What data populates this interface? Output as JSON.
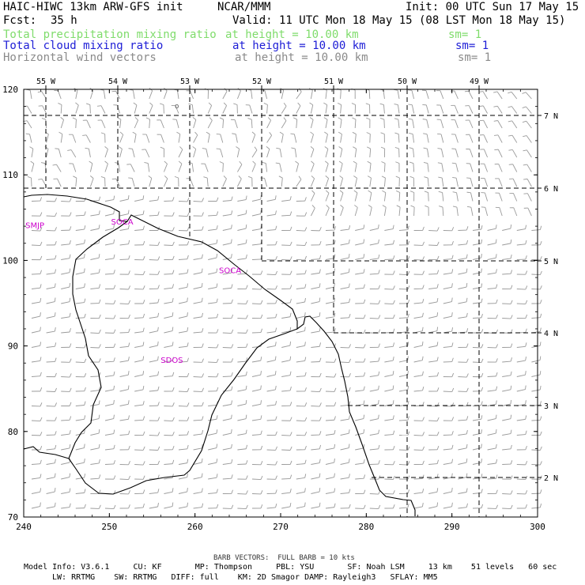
{
  "header": {
    "model_title": "HAIC-HIWC 13km ARW-GFS init",
    "org": "NCAR/MMM",
    "init": "Init: 00 UTC Sun 17 May 15",
    "fcst_label": "Fcst:",
    "fcst_value": "35 h",
    "valid": "Valid: 11 UTC Mon 18 May 15 (08 LST Mon 18 May 15)"
  },
  "fields": [
    {
      "name": "Total precipitation mixing ratio",
      "height": "at height = 10.00 km",
      "sm": "sm= 1",
      "color": "#7fdc6b"
    },
    {
      "name": "Total cloud mixing ratio",
      "height": "at height = 10.00 km",
      "sm": "sm= 1",
      "color": "#1d1dd6"
    },
    {
      "name": "Horizontal wind vectors",
      "height": "at height = 10.00 km",
      "sm": "sm= 1",
      "color": "#8a8a8a"
    }
  ],
  "map": {
    "x_range": [
      240,
      300
    ],
    "y_range": [
      70,
      120
    ],
    "x_ticks": [
      "240",
      "250",
      "260",
      "270",
      "280",
      "290",
      "300"
    ],
    "y_ticks": [
      "70",
      "80",
      "90",
      "100",
      "110",
      "120"
    ],
    "lon_labels": [
      "55 W",
      "54 W",
      "53 W",
      "52 W",
      "51 W",
      "50 W",
      "49 W"
    ],
    "lat_labels": [
      "2 N",
      "3 N",
      "4 N",
      "5 N",
      "6 N",
      "7 N"
    ],
    "stations": [
      {
        "id": "SMJP",
        "x": 241.3,
        "y": 103.8
      },
      {
        "id": "SOCA",
        "x": 251.5,
        "y": 104.2
      },
      {
        "id": "SOCA",
        "x": 264.1,
        "y": 98.5
      },
      {
        "id": "SDOS",
        "x": 257.3,
        "y": 88.0
      }
    ],
    "station_color": "#cc00cc",
    "marker_symbol": "o"
  },
  "footer": {
    "barb_note": "BARB VECTORS:  FULL BARB = 10 kts",
    "line1": "Model Info: V3.6.1     CU: KF       MP: Thompson     PBL: YSU       SF: Noah LSM     13 km    51 levels   60 sec",
    "line2": "LW: RRTMG    SW: RRTMG   DIFF: full    KM: 2D Smagor DAMP: Rayleigh3   SFLAY: MM5"
  }
}
